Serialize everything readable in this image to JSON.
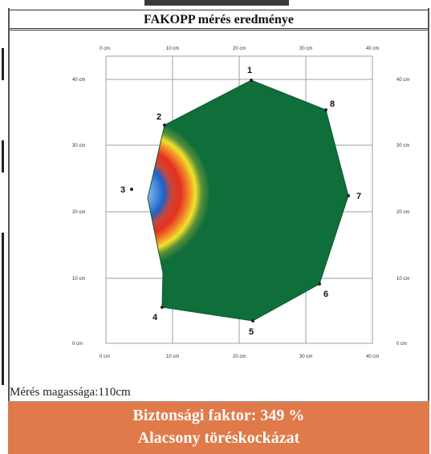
{
  "header": {
    "title": "FAKOPP mérés eredménye"
  },
  "axes": {
    "x_ticks": [
      "0 cm",
      "10 cm",
      "20 cm",
      "30 cm",
      "40 cm"
    ],
    "y_ticks_left": [
      "40 cm",
      "30 cm",
      "20 cm",
      "10 cm",
      "0 cm"
    ],
    "y_ticks_right": [
      "40 cm",
      "30 cm",
      "20 cm",
      "10 cm",
      "0 cm"
    ]
  },
  "sensors": [
    {
      "label": "1"
    },
    {
      "label": "2"
    },
    {
      "label": "3"
    },
    {
      "label": "4"
    },
    {
      "label": "5"
    },
    {
      "label": "6"
    },
    {
      "label": "7"
    },
    {
      "label": "8"
    }
  ],
  "measurement": {
    "height_label": "Mérés magassága:110cm"
  },
  "result": {
    "safety_factor": "Biztonsági faktor: 349 %",
    "risk": "Alacsony töréskockázat"
  },
  "colors": {
    "healthy": "#0f6e3a",
    "result_background": "#e07a4a"
  }
}
